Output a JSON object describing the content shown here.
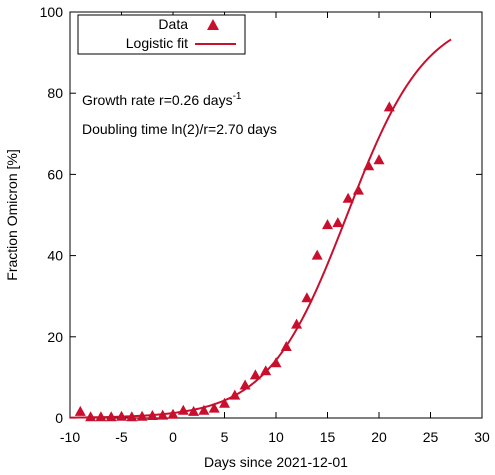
{
  "chart_data": {
    "type": "scatter",
    "xlabel": "Days since 2021-12-01",
    "ylabel": "Fraction Omicron [%]",
    "xlim": [
      -10,
      30
    ],
    "ylim": [
      0,
      100
    ],
    "x_ticks": [
      -10,
      -5,
      0,
      5,
      10,
      15,
      20,
      25,
      30
    ],
    "y_ticks": [
      0,
      20,
      40,
      60,
      80,
      100
    ],
    "x_tick_labels": [
      "-10",
      "-5",
      "0",
      "5",
      "10",
      "15",
      "20",
      "25",
      "30"
    ],
    "y_tick_labels": [
      "0",
      "20",
      "40",
      "60",
      "80",
      "100"
    ],
    "grid": false,
    "legend_position": "top-left",
    "color": "#c8102e",
    "series": [
      {
        "name": "Data",
        "marker": "triangle",
        "x": [
          -9,
          -8,
          -7,
          -6,
          -5,
          -4,
          -3,
          -2,
          -1,
          0,
          1,
          2,
          3,
          4,
          5,
          6,
          7,
          8,
          9,
          10,
          11,
          12,
          13,
          14,
          15,
          16,
          17,
          18,
          19,
          20,
          21
        ],
        "y": [
          1.5,
          0.2,
          0.2,
          0.2,
          0.3,
          0.2,
          0.3,
          0.5,
          0.6,
          0.8,
          1.8,
          1.5,
          1.8,
          2.3,
          3.5,
          5.5,
          8.0,
          10.5,
          11.5,
          13.5,
          17.5,
          23.0,
          29.5,
          40.0,
          47.5,
          48.0,
          54.0,
          56.0,
          62.0,
          63.5,
          76.5
        ]
      },
      {
        "name": "Logistic fit",
        "line": "solid",
        "midpoint_day": 16.9,
        "growth_rate": 0.26,
        "x_range": [
          -10,
          27
        ]
      }
    ],
    "annotations": [
      {
        "text_main": "Growth rate r=0.26 days",
        "text_sup": "-1"
      },
      {
        "text_main": "Doubling time ln(2)/r=2.70 days",
        "text_sup": ""
      }
    ]
  }
}
